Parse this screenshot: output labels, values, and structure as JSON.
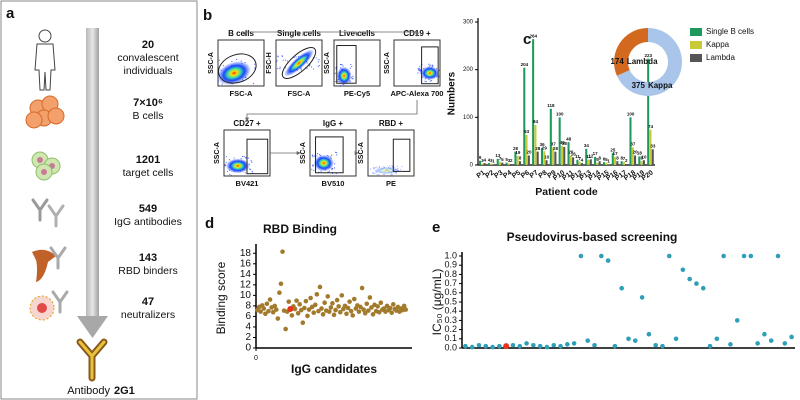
{
  "panel_a": {
    "label": "a",
    "steps": [
      {
        "number": "20",
        "text": [
          "convalescent",
          "individuals"
        ]
      },
      {
        "number": "7×10⁶",
        "text": [
          "B cells"
        ]
      },
      {
        "number": "1201",
        "text": [
          "target cells"
        ]
      },
      {
        "number": "549",
        "text": [
          "IgG antibodies"
        ]
      },
      {
        "number": "143",
        "text": [
          "RBD binders"
        ]
      },
      {
        "number": "47",
        "text": [
          "neutralizers"
        ]
      }
    ],
    "final": {
      "label": "Antibody",
      "name": "2G1"
    }
  },
  "panel_b": {
    "label": "b",
    "plots": [
      {
        "title": "B cells",
        "x_label": "FSC-A",
        "y_label": "SSC-A"
      },
      {
        "title": "Single cells",
        "x_label": "FSC-A",
        "y_label": "FSC-H"
      },
      {
        "title": "Live cells",
        "x_label": "PE-Cy5",
        "y_label": "SSC-A"
      },
      {
        "title": "CD19 +",
        "x_label": "APC-Alexa 700",
        "y_label": "SSC-A"
      },
      {
        "title": "CD27 +",
        "x_label": "BV421",
        "y_label": "SSC-A"
      },
      {
        "title": "IgG +",
        "x_label": "BV510",
        "y_label": "SSC-A"
      },
      {
        "title": "RBD +",
        "x_label": "PE",
        "y_label": "SSC-A"
      }
    ]
  },
  "chart_data": [
    {
      "type": "bar",
      "panel": "c",
      "x_label": "Patient code",
      "y_label": "Numbers",
      "categories": [
        "P1",
        "P2",
        "P3",
        "P4",
        "P5",
        "P6",
        "P7",
        "P8",
        "P9",
        "P10",
        "P11",
        "P12",
        "P13",
        "P14",
        "P15",
        "P16",
        "P17",
        "P18",
        "P19",
        "P20"
      ],
      "series": [
        {
          "name": "Single B cells",
          "color": "#1d9a5b",
          "values": [
            9,
            4,
            13,
            5,
            28,
            204,
            264,
            36,
            118,
            100,
            48,
            11,
            34,
            17,
            6,
            25,
            8,
            100,
            18,
            223
          ]
        },
        {
          "name": "Kappa",
          "color": "#c9c93a",
          "values": [
            3,
            3,
            7,
            3,
            19,
            63,
            84,
            29,
            37,
            40,
            20,
            7,
            11,
            5,
            5,
            17,
            7,
            37,
            8,
            74
          ]
        },
        {
          "name": "Lambda",
          "color": "#555555",
          "values": [
            4,
            1,
            5,
            2,
            8,
            20,
            28,
            10,
            28,
            38,
            16,
            4,
            12,
            8,
            1,
            8,
            2,
            20,
            10,
            33
          ]
        }
      ],
      "ylim": [
        0,
        300
      ],
      "yticks": [
        0,
        100,
        200,
        300
      ],
      "legend": "upper right"
    },
    {
      "type": "pie",
      "donut": true,
      "categories": [
        "Lambda",
        "Kappa"
      ],
      "values": [
        174,
        375
      ],
      "colors": [
        "#d2691e",
        "#a9c5ea"
      ]
    },
    {
      "type": "scatter",
      "panel": "d",
      "title": "RBD Binding",
      "x_label": "IgG candidates",
      "y_label": "Binding score",
      "series": [
        {
          "color": "#a27a2c",
          "x": [
            1,
            2,
            3,
            4,
            5,
            6,
            7,
            8,
            9,
            10,
            11,
            12,
            13,
            14,
            15,
            16,
            17,
            18,
            19,
            20,
            21,
            22,
            23,
            24,
            25,
            26,
            27,
            28,
            29,
            30,
            31,
            32,
            33,
            34,
            35,
            36,
            37,
            38,
            39,
            40,
            41,
            42,
            43,
            44,
            45,
            46,
            47,
            48,
            49,
            50,
            51,
            52,
            53,
            54,
            55,
            56,
            57,
            58,
            59,
            60,
            61,
            62,
            63,
            64,
            65,
            66,
            67,
            68,
            69,
            70,
            71,
            72,
            73,
            74,
            75,
            76,
            77,
            78,
            79,
            80,
            81,
            82,
            83,
            84,
            85,
            86,
            87,
            88,
            89,
            90,
            91,
            92,
            93,
            94,
            95,
            96
          ],
          "values": [
            7.2,
            7.8,
            6.9,
            8.1,
            7.5,
            6.5,
            8.4,
            7.0,
            9.2,
            7.7,
            6.8,
            8.0,
            7.3,
            5.6,
            10.5,
            12.2,
            18.3,
            7.1,
            3.6,
            6.9,
            8.8,
            7.4,
            6.2,
            7.9,
            7.4,
            9.0,
            6.6,
            8.3,
            7.2,
            4.8,
            7.6,
            8.9,
            6.1,
            7.3,
            9.5,
            7.8,
            6.7,
            8.2,
            10.2,
            7.0,
            11.6,
            7.5,
            6.4,
            8.6,
            7.1,
            9.8,
            6.9,
            7.7,
            8.5,
            6.3,
            7.2,
            9.1,
            7.9,
            6.8,
            10.0,
            7.4,
            8.0,
            6.5,
            7.6,
            8.8,
            7.0,
            6.2,
            9.3,
            7.5,
            8.1,
            6.9,
            7.8,
            11.4,
            7.3,
            6.6,
            8.4,
            7.1,
            9.6,
            7.7,
            6.4,
            8.2,
            7.0,
            7.9,
            6.8,
            8.6,
            7.3,
            7.5,
            6.9,
            8.0,
            7.2,
            7.6,
            6.7,
            8.3,
            7.4,
            7.1,
            7.8,
            6.9,
            7.5,
            7.2,
            8.0,
            7.3
          ]
        },
        {
          "color": "#e8321e",
          "x": [
            22
          ],
          "values": [
            7.4
          ]
        }
      ],
      "xlim": [
        0,
        100
      ],
      "xticks": [
        0
      ],
      "ylim": [
        0,
        19
      ],
      "yticks": [
        0,
        2,
        4,
        6,
        8,
        10,
        12,
        14,
        16,
        18
      ]
    },
    {
      "type": "scatter",
      "panel": "e",
      "title": "Pseudovirus-based screening",
      "y_label": "IC₅₀ (μg/mL)",
      "categories": [
        null,
        null,
        null,
        null,
        null,
        null,
        null,
        null,
        null,
        null,
        null,
        null,
        null,
        null,
        null,
        null,
        null,
        null,
        null,
        null,
        null,
        null,
        null,
        null,
        null,
        null,
        null,
        null,
        null,
        null,
        null,
        null,
        null,
        null,
        null,
        null,
        null,
        null,
        null,
        null,
        null,
        null,
        null,
        null,
        null,
        null,
        null,
        null,
        null
      ],
      "series": [
        {
          "color": "#2e9fb8",
          "values": [
            0.02,
            0.01,
            0.03,
            0.02,
            0.01,
            0.02,
            null,
            0.03,
            0.02,
            0.05,
            0.03,
            0.02,
            0.01,
            0.03,
            0.02,
            0.04,
            0.05,
            1.0,
            0.08,
            0.03,
            1.0,
            0.95,
            0.02,
            0.65,
            0.1,
            0.08,
            0.55,
            0.15,
            0.03,
            0.02,
            1.0,
            0.1,
            0.85,
            0.75,
            0.7,
            0.65,
            0.02,
            0.1,
            1.0,
            0.04,
            0.3,
            1.0,
            1.0,
            0.05,
            0.15,
            0.08,
            1.0,
            0.05,
            0.12
          ]
        },
        {
          "color": "#e8321e",
          "values": [
            null,
            null,
            null,
            null,
            null,
            null,
            0.02,
            null,
            null,
            null,
            null,
            null,
            null,
            null,
            null,
            null,
            null,
            null,
            null,
            null,
            null,
            null,
            null,
            null,
            null,
            null,
            null,
            null,
            null,
            null,
            null,
            null,
            null,
            null,
            null,
            null,
            null,
            null,
            null,
            null,
            null,
            null,
            null,
            null,
            null,
            null,
            null,
            null,
            null
          ]
        }
      ],
      "ylim": [
        0,
        1.0
      ],
      "yticks": [
        {
          "value": 0,
          "label": "0.0"
        },
        0.1,
        0.2,
        0.3,
        0.4,
        0.5,
        0.6,
        0.7,
        0.8,
        0.9,
        {
          "value": 1,
          "label": "1.0"
        }
      ]
    }
  ]
}
